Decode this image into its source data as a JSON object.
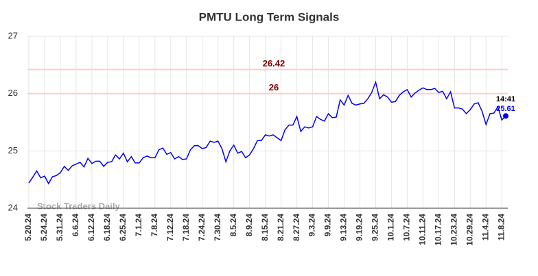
{
  "chart_data": {
    "type": "line",
    "title": "PMTU Long Term Signals",
    "watermark": "Stock Traders Daily",
    "color": "#0000ff",
    "ylim": [
      24,
      27
    ],
    "yticks": [
      24,
      25,
      26,
      27
    ],
    "grid": true,
    "hlines": [
      {
        "value": 26.42,
        "color": "#ffcccc",
        "label_color": "#800000"
      },
      {
        "value": 26,
        "color": "#ffcccc",
        "label_color": "#800000"
      }
    ],
    "last_time": "14:41",
    "categories": [
      "5.20.24",
      null,
      null,
      null,
      "5.24.24",
      null,
      null,
      null,
      "5.31.24",
      null,
      null,
      null,
      "6.6.24",
      null,
      null,
      null,
      "6.12.24",
      null,
      null,
      null,
      "6.18.24",
      null,
      null,
      null,
      "6.25.24",
      null,
      null,
      null,
      "7.1.24",
      null,
      null,
      null,
      "7.8.24",
      null,
      null,
      null,
      "7.12.24",
      null,
      null,
      null,
      "7.18.24",
      null,
      null,
      null,
      "7.24.24",
      null,
      null,
      null,
      "7.30.24",
      null,
      null,
      null,
      "8.5.24",
      null,
      null,
      null,
      "8.9.24",
      null,
      null,
      null,
      "8.15.24",
      null,
      null,
      null,
      "8.21.24",
      null,
      null,
      null,
      "8.27.24",
      null,
      null,
      null,
      "9.3.24",
      null,
      null,
      null,
      "9.9.24",
      null,
      null,
      null,
      "9.13.24",
      null,
      null,
      null,
      "9.19.24",
      null,
      null,
      null,
      "9.25.24",
      null,
      null,
      null,
      "10.1.24",
      null,
      null,
      null,
      "10.7.24",
      null,
      null,
      null,
      "10.11.24",
      null,
      null,
      null,
      "10.17.24",
      null,
      null,
      null,
      "10.23.24",
      null,
      null,
      null,
      "10.29.24",
      null,
      null,
      null,
      "11.4.24",
      null,
      null,
      null,
      "11.8.24",
      null
    ],
    "values": [
      24.44,
      24.54,
      24.65,
      24.53,
      24.56,
      24.43,
      24.55,
      24.57,
      24.62,
      24.73,
      24.66,
      24.74,
      24.77,
      24.8,
      24.72,
      24.87,
      24.78,
      24.82,
      24.82,
      24.73,
      24.8,
      24.81,
      24.93,
      24.86,
      24.96,
      24.81,
      24.9,
      24.79,
      24.79,
      24.88,
      24.91,
      24.88,
      24.88,
      25.02,
      25.05,
      24.94,
      24.97,
      24.86,
      24.9,
      24.85,
      24.86,
      25.02,
      25.09,
      25.09,
      25.04,
      25.06,
      25.17,
      25.15,
      25.17,
      25.04,
      24.81,
      25.0,
      25.1,
      24.96,
      24.99,
      24.88,
      24.93,
      25.04,
      25.18,
      25.18,
      25.28,
      25.26,
      25.28,
      25.23,
      25.18,
      25.37,
      25.45,
      25.45,
      25.6,
      25.34,
      25.42,
      25.4,
      25.42,
      25.6,
      25.55,
      25.52,
      25.65,
      25.58,
      25.59,
      25.89,
      25.8,
      25.97,
      25.83,
      25.8,
      25.82,
      25.83,
      25.91,
      26.02,
      26.2,
      25.91,
      25.98,
      25.94,
      25.85,
      25.86,
      25.97,
      26.03,
      26.07,
      25.94,
      26.01,
      26.06,
      26.1,
      26.07,
      26.07,
      26.09,
      26.02,
      26.04,
      25.91,
      26.03,
      25.75,
      25.75,
      25.73,
      25.65,
      25.72,
      25.82,
      25.84,
      25.69,
      25.46,
      25.65,
      25.66,
      25.77,
      25.54,
      25.61
    ]
  }
}
